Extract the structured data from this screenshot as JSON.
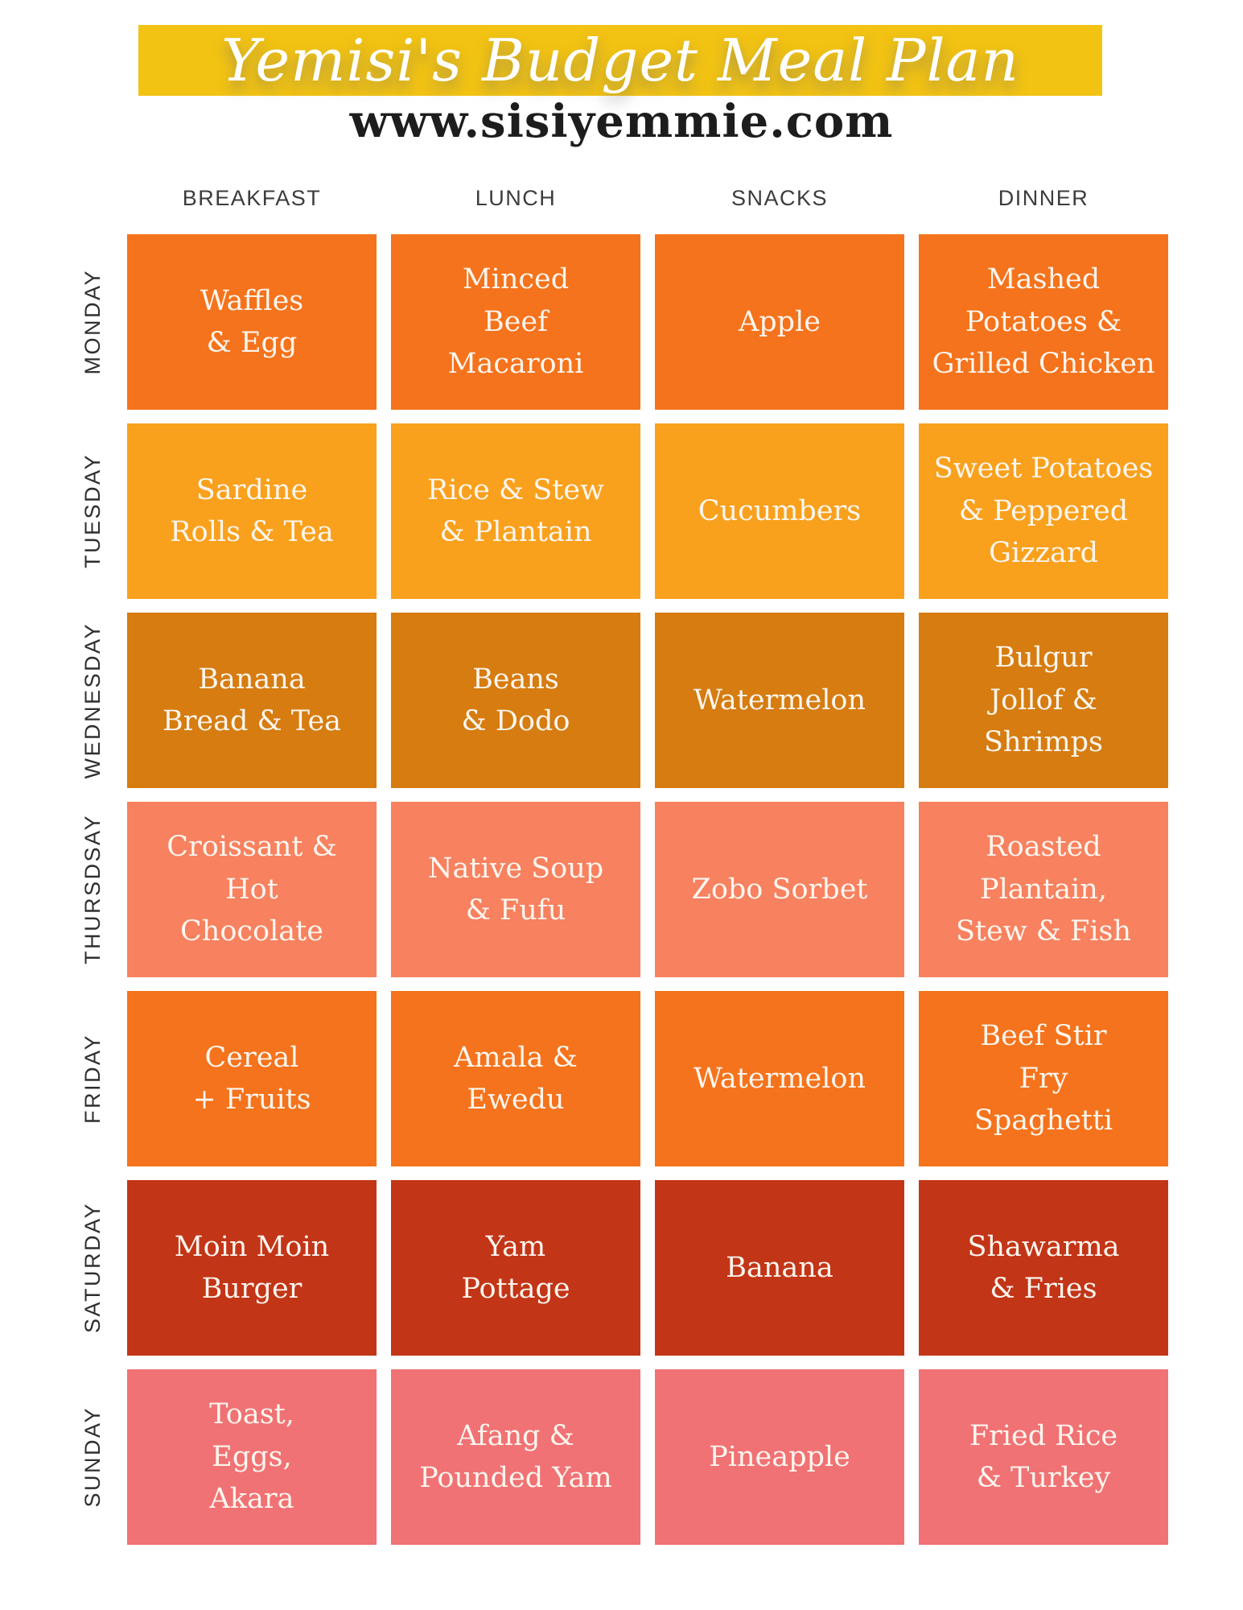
{
  "header": {
    "title": "Yemisi's Budget Meal Plan",
    "banner_color": "#F2C313",
    "title_color": "#FFFFFF",
    "website": "www.sisiyemmie.com"
  },
  "table": {
    "column_headers": [
      "BREAKFAST",
      "LUNCH",
      "SNACKS",
      "DINNER"
    ],
    "rows": [
      {
        "day": "MONDAY",
        "color": "#F5731C",
        "meals": {
          "breakfast": "Waffles\n& Egg",
          "lunch": "Minced\nBeef\nMacaroni",
          "snacks": "Apple",
          "dinner": "Mashed\nPotatoes &\nGrilled Chicken"
        }
      },
      {
        "day": "TUESDAY",
        "color": "#F9A11D",
        "meals": {
          "breakfast": "Sardine\nRolls & Tea",
          "lunch": "Rice & Stew\n& Plantain",
          "snacks": "Cucumbers",
          "dinner": "Sweet Potatoes\n& Peppered\nGizzard"
        }
      },
      {
        "day": "WEDNESDAY",
        "color": "#D67C10",
        "meals": {
          "breakfast": "Banana\nBread & Tea",
          "lunch": "Beans\n& Dodo",
          "snacks": "Watermelon",
          "dinner": "Bulgur\nJollof &\nShrimps"
        }
      },
      {
        "day": "THURSDSAY",
        "color": "#F8815F",
        "meals": {
          "breakfast": "Croissant &\nHot\nChocolate",
          "lunch": "Native Soup\n& Fufu",
          "snacks": "Zobo Sorbet",
          "dinner": "Roasted\nPlantain,\nStew & Fish"
        }
      },
      {
        "day": "FRIDAY",
        "color": "#F5731C",
        "meals": {
          "breakfast": "Cereal\n+ Fruits",
          "lunch": "Amala &\nEwedu",
          "snacks": "Watermelon",
          "dinner": "Beef Stir\nFry\nSpaghetti"
        }
      },
      {
        "day": "SATURDAY",
        "color": "#C33517",
        "meals": {
          "breakfast": "Moin Moin\nBurger",
          "lunch": "Yam\nPottage",
          "snacks": "Banana",
          "dinner": "Shawarma\n& Fries"
        }
      },
      {
        "day": "SUNDAY",
        "color": "#F17274",
        "meals": {
          "breakfast": "Toast,\nEggs,\nAkara",
          "lunch": "Afang &\nPounded Yam",
          "snacks": "Pineapple",
          "dinner": "Fried Rice\n& Turkey"
        }
      }
    ]
  }
}
